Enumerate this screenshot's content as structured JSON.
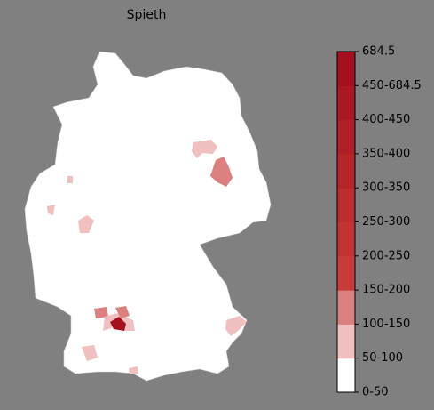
{
  "title": "Spieth",
  "colorbar": {
    "labels": [
      "0-50",
      "50-100",
      "100-150",
      "150-200",
      "200-250",
      "250-300",
      "300-350",
      "350-400",
      "400-450",
      "450-684.5",
      "684.5"
    ],
    "colors": [
      "#ffffff",
      "#f0c0c0",
      "#db7f7f",
      "#c93a3a",
      "#c33333",
      "#bd2c2f",
      "#b7252b",
      "#b11e27",
      "#ab1723",
      "#a50f1f"
    ]
  }
}
